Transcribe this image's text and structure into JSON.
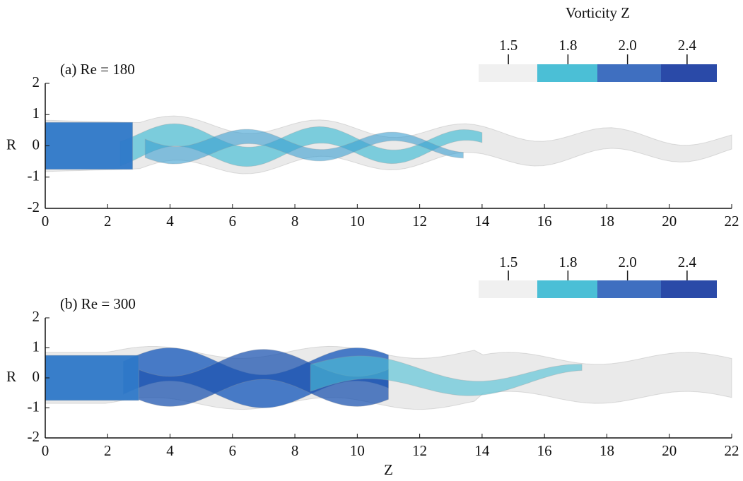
{
  "chart_data": [
    {
      "type": "render",
      "annotation": "(a) Re = 180",
      "ylabel": "R",
      "xlim": [
        0,
        22
      ],
      "ylim": [
        -2,
        2
      ],
      "xticks": [
        0,
        2,
        4,
        6,
        8,
        10,
        12,
        14,
        16,
        18,
        20,
        22
      ],
      "yticks": [
        -2,
        -1,
        0,
        1,
        2
      ],
      "colorbar": {
        "title": "Vorticity Z",
        "colors": [
          "#f0f0f0",
          "#4bbfd6",
          "#3f6fc0",
          "#2a4aa8"
        ],
        "ticks": [
          1.5,
          1.8,
          {
            "value": 2,
            "label": "2.0"
          },
          2.4
        ]
      }
    },
    {
      "type": "render",
      "annotation": "(b) Re = 300",
      "ylabel": "R",
      "xlabel": "Z",
      "xlim": [
        0,
        22
      ],
      "ylim": [
        -2,
        2
      ],
      "xticks": [
        0,
        2,
        4,
        6,
        8,
        10,
        12,
        14,
        16,
        18,
        20,
        22
      ],
      "yticks": [
        -2,
        -1,
        0,
        1,
        2
      ],
      "colorbar": {
        "colors": [
          "#f0f0f0",
          "#4bbfd6",
          "#3f6fc0",
          "#2a4aa8"
        ],
        "ticks": [
          1.5,
          1.8,
          {
            "value": 2,
            "label": "2.0"
          },
          2.4
        ]
      }
    }
  ]
}
